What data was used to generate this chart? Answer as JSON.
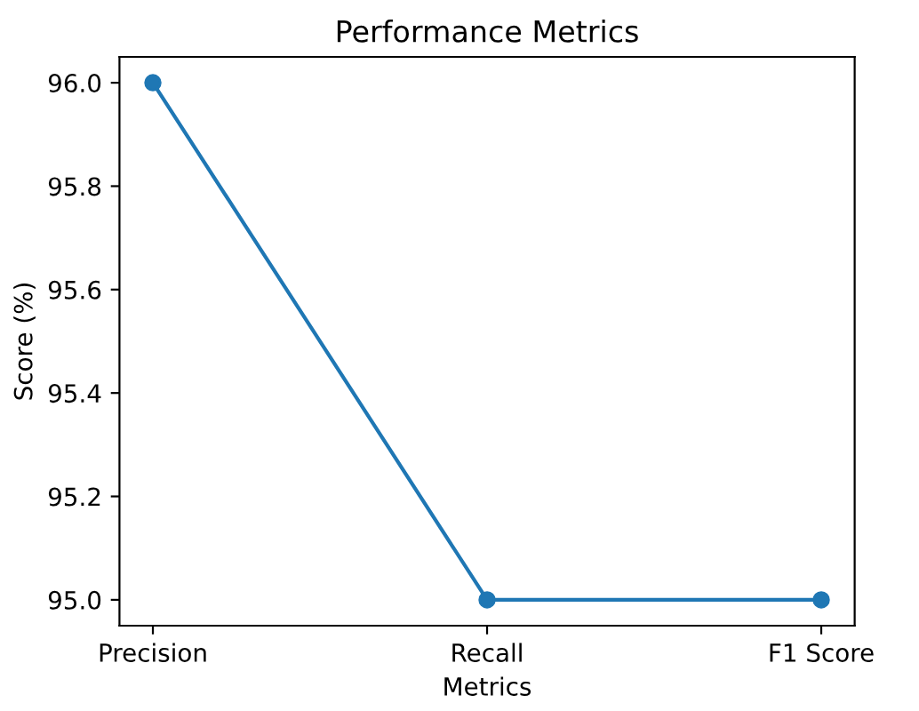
{
  "chart_data": {
    "type": "line",
    "title": "Performance Metrics",
    "xlabel": "Metrics",
    "ylabel": "Score (%)",
    "categories": [
      "Precision",
      "Recall",
      "F1 Score"
    ],
    "series": [
      {
        "color": "#1f77b4",
        "values": [
          96.0,
          95.0,
          95.0
        ]
      }
    ],
    "ylim": [
      94.95,
      96.05
    ],
    "yticks": [
      {
        "value": 95.0,
        "label": "95.0"
      },
      {
        "value": 95.2,
        "label": "95.2"
      },
      {
        "value": 95.4,
        "label": "95.4"
      },
      {
        "value": 95.6,
        "label": "95.6"
      },
      {
        "value": 95.8,
        "label": "95.8"
      },
      {
        "value": 96.0,
        "label": "96.0"
      }
    ],
    "marker": "circle",
    "line_style": "solid",
    "grid": false,
    "legend": false
  }
}
